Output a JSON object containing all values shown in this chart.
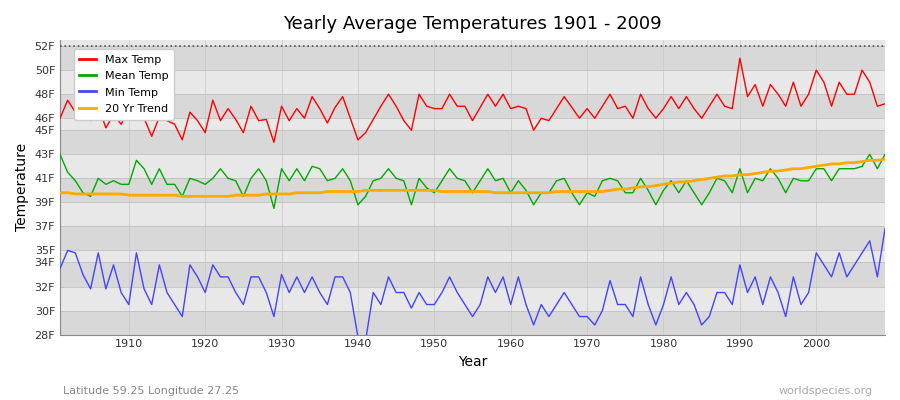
{
  "title": "Yearly Average Temperatures 1901 - 2009",
  "xlabel": "Year",
  "ylabel": "Temperature",
  "subtitle_lat": "Latitude 59.25 Longitude 27.25",
  "watermark": "worldspecies.org",
  "years": [
    1901,
    1902,
    1903,
    1904,
    1905,
    1906,
    1907,
    1908,
    1909,
    1910,
    1911,
    1912,
    1913,
    1914,
    1915,
    1916,
    1917,
    1918,
    1919,
    1920,
    1921,
    1922,
    1923,
    1924,
    1925,
    1926,
    1927,
    1928,
    1929,
    1930,
    1931,
    1932,
    1933,
    1934,
    1935,
    1936,
    1937,
    1938,
    1939,
    1940,
    1941,
    1942,
    1943,
    1944,
    1945,
    1946,
    1947,
    1948,
    1949,
    1950,
    1951,
    1952,
    1953,
    1954,
    1955,
    1956,
    1957,
    1958,
    1959,
    1960,
    1961,
    1962,
    1963,
    1964,
    1965,
    1966,
    1967,
    1968,
    1969,
    1970,
    1971,
    1972,
    1973,
    1974,
    1975,
    1976,
    1977,
    1978,
    1979,
    1980,
    1981,
    1982,
    1983,
    1984,
    1985,
    1986,
    1987,
    1988,
    1989,
    1990,
    1991,
    1992,
    1993,
    1994,
    1995,
    1996,
    1997,
    1998,
    1999,
    2000,
    2001,
    2002,
    2003,
    2004,
    2005,
    2006,
    2007,
    2008,
    2009
  ],
  "max_temp": [
    46.0,
    47.5,
    46.5,
    46.2,
    45.8,
    47.0,
    45.2,
    46.3,
    45.5,
    46.8,
    47.2,
    46.0,
    44.5,
    46.1,
    45.8,
    45.5,
    44.2,
    46.5,
    45.8,
    44.8,
    47.5,
    45.8,
    46.8,
    45.9,
    44.8,
    47.0,
    45.8,
    45.9,
    44.0,
    47.0,
    45.8,
    46.8,
    46.0,
    47.8,
    46.8,
    45.6,
    46.9,
    47.8,
    46.0,
    44.2,
    44.8,
    45.9,
    47.0,
    48.0,
    47.0,
    45.8,
    45.0,
    48.0,
    47.0,
    46.8,
    46.8,
    48.0,
    47.0,
    47.0,
    45.8,
    46.9,
    48.0,
    47.0,
    48.0,
    46.8,
    47.0,
    46.8,
    45.0,
    46.0,
    45.8,
    46.8,
    47.8,
    46.9,
    46.0,
    46.8,
    46.0,
    47.0,
    48.0,
    46.8,
    47.0,
    46.0,
    48.0,
    46.8,
    46.0,
    46.8,
    47.8,
    46.8,
    47.8,
    46.8,
    46.0,
    47.0,
    48.0,
    47.0,
    46.8,
    51.0,
    47.8,
    48.8,
    47.0,
    48.8,
    48.0,
    47.0,
    49.0,
    47.0,
    48.0,
    50.0,
    49.0,
    47.0,
    49.0,
    48.0,
    48.0,
    50.0,
    49.0,
    47.0,
    47.2
  ],
  "mean_temp": [
    43.0,
    41.5,
    40.8,
    39.8,
    39.5,
    41.0,
    40.5,
    40.8,
    40.5,
    40.5,
    42.5,
    41.8,
    40.5,
    41.8,
    40.5,
    40.5,
    39.5,
    41.0,
    40.8,
    40.5,
    41.0,
    41.8,
    41.0,
    40.8,
    39.5,
    41.0,
    41.8,
    40.8,
    38.5,
    41.8,
    40.8,
    41.8,
    40.8,
    42.0,
    41.8,
    40.8,
    41.0,
    41.8,
    40.8,
    38.8,
    39.5,
    40.8,
    41.0,
    41.8,
    41.0,
    40.8,
    38.8,
    41.0,
    40.2,
    39.8,
    40.8,
    41.8,
    41.0,
    40.8,
    39.8,
    40.8,
    41.8,
    40.8,
    41.0,
    39.8,
    40.8,
    40.0,
    38.8,
    39.8,
    39.8,
    40.8,
    41.0,
    39.8,
    38.8,
    39.8,
    39.5,
    40.8,
    41.0,
    40.8,
    39.8,
    39.8,
    41.0,
    40.0,
    38.8,
    40.0,
    40.8,
    39.8,
    40.8,
    39.8,
    38.8,
    39.8,
    41.0,
    40.8,
    39.8,
    41.8,
    39.8,
    41.0,
    40.8,
    41.8,
    41.0,
    39.8,
    41.0,
    40.8,
    40.8,
    41.8,
    41.8,
    40.8,
    41.8,
    41.8,
    41.8,
    42.0,
    43.0,
    41.8,
    43.0
  ],
  "min_temp": [
    33.5,
    35.0,
    34.8,
    33.0,
    31.8,
    34.8,
    31.8,
    33.8,
    31.5,
    30.5,
    34.8,
    31.8,
    30.5,
    33.8,
    31.5,
    30.5,
    29.5,
    33.8,
    32.8,
    31.5,
    33.8,
    32.8,
    32.8,
    31.5,
    30.5,
    32.8,
    32.8,
    31.5,
    29.5,
    33.0,
    31.5,
    32.8,
    31.5,
    32.8,
    31.5,
    30.5,
    32.8,
    32.8,
    31.5,
    27.8,
    27.5,
    31.5,
    30.5,
    32.8,
    31.5,
    31.5,
    30.2,
    31.5,
    30.5,
    30.5,
    31.5,
    32.8,
    31.5,
    30.5,
    29.5,
    30.5,
    32.8,
    31.5,
    32.8,
    30.5,
    32.8,
    30.5,
    28.8,
    30.5,
    29.5,
    30.5,
    31.5,
    30.5,
    29.5,
    29.5,
    28.8,
    30.0,
    32.5,
    30.5,
    30.5,
    29.5,
    32.8,
    30.5,
    28.8,
    30.5,
    32.8,
    30.5,
    31.5,
    30.5,
    28.8,
    29.5,
    31.5,
    31.5,
    30.5,
    33.8,
    31.5,
    32.8,
    30.5,
    32.8,
    31.5,
    29.5,
    32.8,
    30.5,
    31.5,
    34.8,
    33.8,
    32.8,
    34.8,
    32.8,
    33.8,
    34.8,
    35.8,
    32.8,
    36.8
  ],
  "trend_20yr": [
    39.8,
    39.8,
    39.7,
    39.7,
    39.7,
    39.7,
    39.7,
    39.7,
    39.7,
    39.6,
    39.6,
    39.6,
    39.6,
    39.6,
    39.6,
    39.6,
    39.5,
    39.5,
    39.5,
    39.5,
    39.5,
    39.5,
    39.5,
    39.6,
    39.6,
    39.6,
    39.6,
    39.7,
    39.7,
    39.7,
    39.7,
    39.8,
    39.8,
    39.8,
    39.8,
    39.9,
    39.9,
    39.9,
    39.9,
    39.9,
    40.0,
    40.0,
    40.0,
    40.0,
    40.0,
    40.0,
    40.0,
    40.0,
    40.0,
    40.0,
    39.9,
    39.9,
    39.9,
    39.9,
    39.9,
    39.9,
    39.9,
    39.8,
    39.8,
    39.8,
    39.8,
    39.8,
    39.8,
    39.8,
    39.8,
    39.9,
    39.9,
    39.9,
    39.9,
    39.9,
    39.9,
    39.9,
    40.0,
    40.1,
    40.1,
    40.2,
    40.3,
    40.3,
    40.4,
    40.5,
    40.6,
    40.7,
    40.7,
    40.8,
    40.9,
    41.0,
    41.1,
    41.2,
    41.2,
    41.3,
    41.3,
    41.4,
    41.5,
    41.6,
    41.6,
    41.7,
    41.8,
    41.8,
    41.9,
    42.0,
    42.1,
    42.2,
    42.2,
    42.3,
    42.3,
    42.4,
    42.5,
    42.5,
    42.6
  ],
  "max_color": "#ff0000",
  "mean_color": "#00aa00",
  "min_color": "#4444ff",
  "trend_color": "#ffaa00",
  "band_colors": [
    "#d8d8d8",
    "#e8e8e8"
  ],
  "grid_color": "#cccccc",
  "ylim": [
    28,
    52.5
  ],
  "yticks": [
    28,
    30,
    32,
    34,
    35,
    37,
    39,
    41,
    43,
    45,
    46,
    48,
    50,
    52
  ],
  "ytick_labels": [
    "28F",
    "30F",
    "32F",
    "34F",
    "35F",
    "37F",
    "39F",
    "41F",
    "43F",
    "45F",
    "46F",
    "48F",
    "50F",
    "52F"
  ],
  "band_boundaries": [
    28,
    30,
    32,
    34,
    35,
    37,
    39,
    41,
    43,
    45,
    46,
    48,
    50,
    52,
    53
  ],
  "dotted_line_y": 52,
  "xticks": [
    1910,
    1920,
    1930,
    1940,
    1950,
    1960,
    1970,
    1980,
    1990,
    2000
  ],
  "xmin": 1901,
  "xmax": 2009
}
